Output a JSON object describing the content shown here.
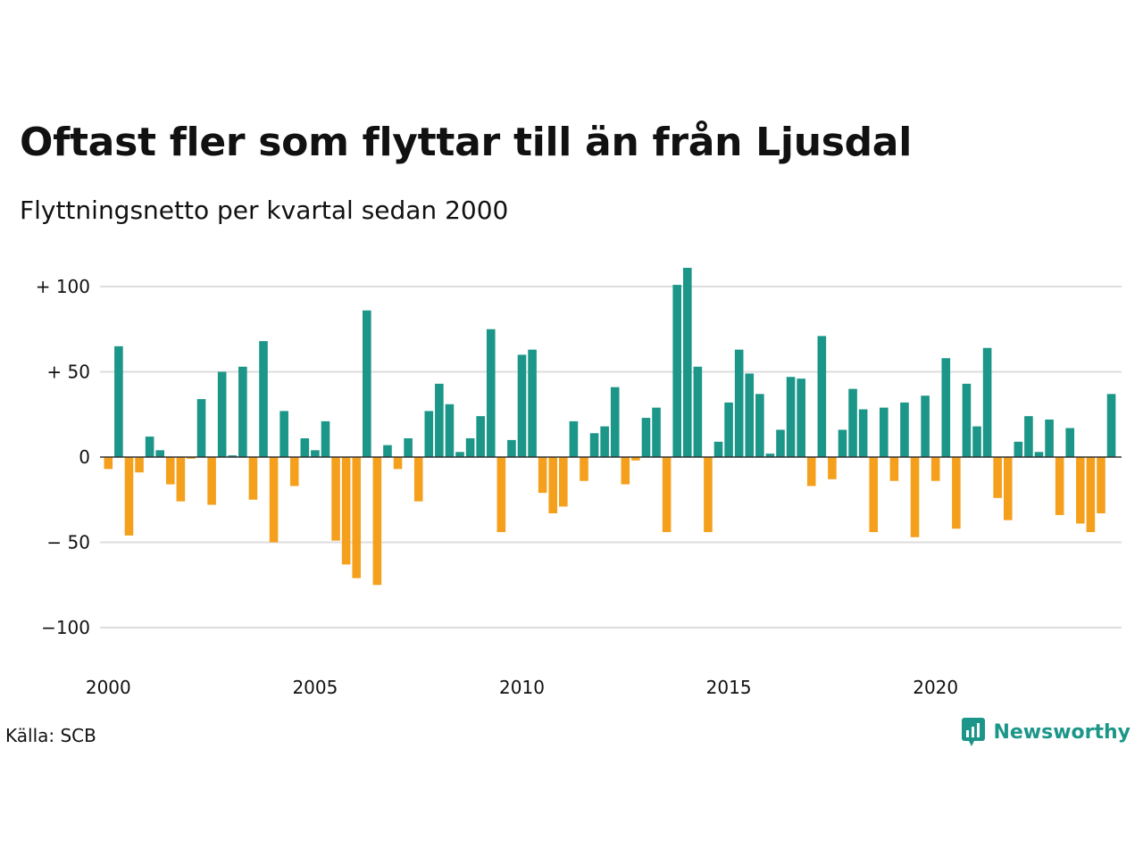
{
  "title": "Oftast fler som flyttar till än från Ljusdal",
  "subtitle": "Flyttningsnetto per kvartal sedan 2000",
  "source": "Källa: SCB",
  "brand": {
    "name": "Newsworthy",
    "icon": "newsworthy-logo-icon"
  },
  "colors": {
    "positive": "#1b9688",
    "negative": "#f5a01d",
    "grid": "#dddddd",
    "zero_line": "#333333",
    "text": "#111111"
  },
  "chart_data": {
    "type": "bar",
    "title": "Oftast fler som flyttar till än från Ljusdal",
    "subtitle": "Flyttningsnetto per kvartal sedan 2000",
    "xlabel": "",
    "ylabel": "",
    "ylim": [
      -105,
      110
    ],
    "y_ticks": [
      {
        "value": 100,
        "label": "+ 100"
      },
      {
        "value": 50,
        "label": "+  50"
      },
      {
        "value": 0,
        "label": "0"
      },
      {
        "value": -50,
        "label": "− 50"
      },
      {
        "value": -100,
        "label": "−100"
      }
    ],
    "x_ticks": [
      "2000",
      "2005",
      "2010",
      "2015",
      "2020"
    ],
    "start_year": 2000,
    "periods_per_year": 4,
    "grid": true,
    "legend": "none",
    "values": [
      -7,
      65,
      -46,
      -9,
      12,
      4,
      -16,
      -26,
      -1,
      34,
      -28,
      50,
      1,
      53,
      -25,
      68,
      -50,
      27,
      -17,
      11,
      4,
      21,
      -49,
      -63,
      -71,
      86,
      -75,
      7,
      -7,
      11,
      -26,
      27,
      43,
      31,
      3,
      11,
      24,
      75,
      -44,
      10,
      60,
      63,
      -21,
      -33,
      -29,
      21,
      -14,
      14,
      18,
      41,
      -16,
      -2,
      23,
      29,
      -44,
      101,
      111,
      53,
      -44,
      9,
      32,
      63,
      49,
      37,
      2,
      16,
      47,
      46,
      -17,
      71,
      -13,
      16,
      40,
      28,
      -44,
      29,
      -14,
      32,
      -47,
      36,
      -14,
      58,
      -42,
      43,
      18,
      64,
      -24,
      -37,
      9,
      24,
      3,
      22,
      -34,
      17,
      -39,
      -44,
      -33,
      37
    ]
  }
}
